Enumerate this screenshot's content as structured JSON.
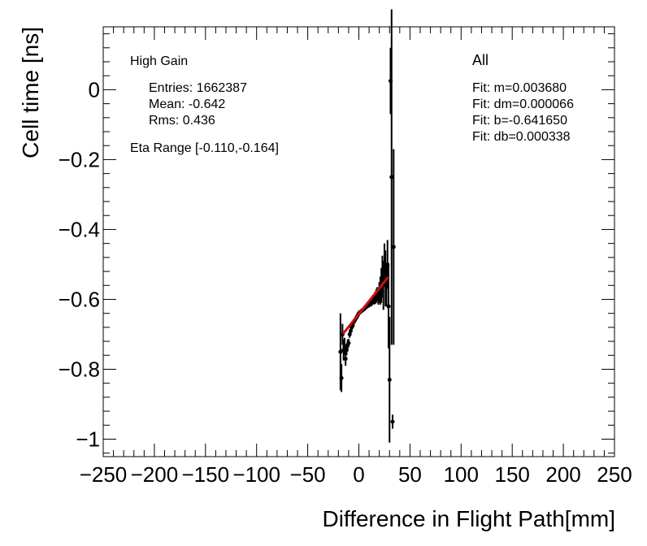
{
  "chart_data": {
    "type": "scatter",
    "title": "",
    "xlabel": "Difference in Flight Path[mm]",
    "ylabel": "Cell time [ns]",
    "xlim": [
      -250,
      250
    ],
    "ylim": [
      -1.05,
      0.18
    ],
    "x_ticks": [
      -250,
      -200,
      -150,
      -100,
      -50,
      0,
      50,
      100,
      150,
      200,
      250
    ],
    "x_tick_labels": [
      "−250",
      "−200",
      "−150",
      "−100",
      "−50",
      "0",
      "50",
      "100",
      "150",
      "200",
      "250"
    ],
    "y_ticks": [
      0,
      -0.2,
      -0.4,
      -0.6,
      -0.8,
      -1
    ],
    "y_tick_labels": [
      "0",
      "−0.2",
      "−0.4",
      "−0.6",
      "−0.8",
      "−1"
    ],
    "stats": {
      "gain": "High Gain",
      "entries": "Entries: 1662387",
      "mean": "Mean: -0.642",
      "rms": "Rms: 0.436",
      "eta_range": "Eta Range [-0.110,-0.164]"
    },
    "fit": {
      "label": "All",
      "m": "Fit: m=0.003680",
      "dm": "Fit: dm=0.000066",
      "b": "Fit: b=-0.641650",
      "db": "Fit: db=0.000338",
      "line_x": [
        -15,
        28
      ],
      "line_color": "#cc1111"
    },
    "points": [
      {
        "x": -18,
        "y": -0.75,
        "err": 0.11
      },
      {
        "x": -17,
        "y": -0.825,
        "err": 0.04
      },
      {
        "x": -16,
        "y": -0.7,
        "err": 0.03
      },
      {
        "x": -15,
        "y": -0.745,
        "err": 0.03
      },
      {
        "x": -14,
        "y": -0.735,
        "err": 0.025
      },
      {
        "x": -13,
        "y": -0.77,
        "err": 0.02
      },
      {
        "x": -12,
        "y": -0.745,
        "err": 0.015
      },
      {
        "x": -11,
        "y": -0.73,
        "err": 0.015
      },
      {
        "x": -10,
        "y": -0.725,
        "err": 0.012
      },
      {
        "x": -9,
        "y": -0.7,
        "err": 0.01
      },
      {
        "x": -8,
        "y": -0.69,
        "err": 0.01
      },
      {
        "x": -7,
        "y": -0.68,
        "err": 0.008
      },
      {
        "x": -6,
        "y": -0.675,
        "err": 0.006
      },
      {
        "x": -5,
        "y": -0.665,
        "err": 0.005
      },
      {
        "x": -4,
        "y": -0.66,
        "err": 0.004
      },
      {
        "x": -3,
        "y": -0.655,
        "err": 0.004
      },
      {
        "x": -2,
        "y": -0.65,
        "err": 0.003
      },
      {
        "x": -1,
        "y": -0.645,
        "err": 0.003
      },
      {
        "x": 0,
        "y": -0.64,
        "err": 0.003
      },
      {
        "x": 1,
        "y": -0.637,
        "err": 0.003
      },
      {
        "x": 2,
        "y": -0.635,
        "err": 0.003
      },
      {
        "x": 3,
        "y": -0.632,
        "err": 0.003
      },
      {
        "x": 4,
        "y": -0.63,
        "err": 0.004
      },
      {
        "x": 5,
        "y": -0.628,
        "err": 0.004
      },
      {
        "x": 6,
        "y": -0.625,
        "err": 0.005
      },
      {
        "x": 7,
        "y": -0.622,
        "err": 0.005
      },
      {
        "x": 8,
        "y": -0.62,
        "err": 0.006
      },
      {
        "x": 9,
        "y": -0.617,
        "err": 0.007
      },
      {
        "x": 10,
        "y": -0.615,
        "err": 0.008
      },
      {
        "x": 11,
        "y": -0.612,
        "err": 0.009
      },
      {
        "x": 12,
        "y": -0.61,
        "err": 0.01
      },
      {
        "x": 13,
        "y": -0.605,
        "err": 0.012
      },
      {
        "x": 14,
        "y": -0.6,
        "err": 0.013
      },
      {
        "x": 15,
        "y": -0.6,
        "err": 0.015
      },
      {
        "x": 16,
        "y": -0.595,
        "err": 0.018
      },
      {
        "x": 17,
        "y": -0.59,
        "err": 0.02
      },
      {
        "x": 18,
        "y": -0.585,
        "err": 0.02
      },
      {
        "x": 19,
        "y": -0.59,
        "err": 0.025
      },
      {
        "x": 20,
        "y": -0.58,
        "err": 0.03
      },
      {
        "x": 21,
        "y": -0.575,
        "err": 0.04
      },
      {
        "x": 22,
        "y": -0.56,
        "err": 0.05
      },
      {
        "x": 23,
        "y": -0.535,
        "err": 0.06
      },
      {
        "x": 24,
        "y": -0.56,
        "err": 0.07
      },
      {
        "x": 25,
        "y": -0.5,
        "err": 0.06
      },
      {
        "x": 26,
        "y": -0.54,
        "err": 0.08
      },
      {
        "x": 27,
        "y": -0.56,
        "err": 0.06
      },
      {
        "x": 28,
        "y": -0.5,
        "err": 0.07
      },
      {
        "x": 29,
        "y": -0.62,
        "err": 0.12
      },
      {
        "x": 30,
        "y": -0.83,
        "err": 0.18
      },
      {
        "x": 31,
        "y": 0.025,
        "err": 0.095
      },
      {
        "x": 32,
        "y": -0.25,
        "err": 0.48
      },
      {
        "x": 33,
        "y": -0.95,
        "err": 0.02
      },
      {
        "x": 34,
        "y": -0.45,
        "err": 0.28
      }
    ]
  }
}
